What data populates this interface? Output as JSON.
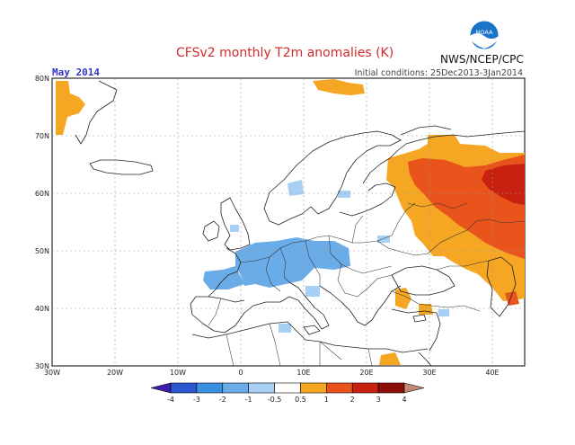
{
  "header": {
    "title": "CFSv2 monthly T2m anomalies (K)",
    "month": "May 2014",
    "initial_conditions": "Initial conditions: 25Dec2013-3Jan2014",
    "agency": "NWS/NCEP/CPC",
    "logo_text": "NOAA"
  },
  "map": {
    "lat_labels": [
      "80N",
      "70N",
      "60N",
      "50N",
      "40N",
      "30N"
    ],
    "lon_labels": [
      "30W",
      "20W",
      "10W",
      "0",
      "10E",
      "20E",
      "30E",
      "40E"
    ]
  },
  "legend": {
    "labels": [
      "-4",
      "-3",
      "-2",
      "-1",
      "-0.5",
      "0.5",
      "1",
      "2",
      "3",
      "4"
    ],
    "colors": [
      "#3b1fa8",
      "#2a56cf",
      "#3a8fe0",
      "#6aace8",
      "#a8d0f4",
      "#ffffff",
      "#f5a623",
      "#e8541c",
      "#c8210f",
      "#8c1008",
      "#c08878"
    ]
  },
  "colors": {
    "title": "#d42a2a",
    "month": "#3333cc",
    "warm1": "#f5a623",
    "warm2": "#e8541c",
    "warm3": "#c8210f",
    "cool1": "#6aace8",
    "cool2": "#a8d0f4"
  }
}
